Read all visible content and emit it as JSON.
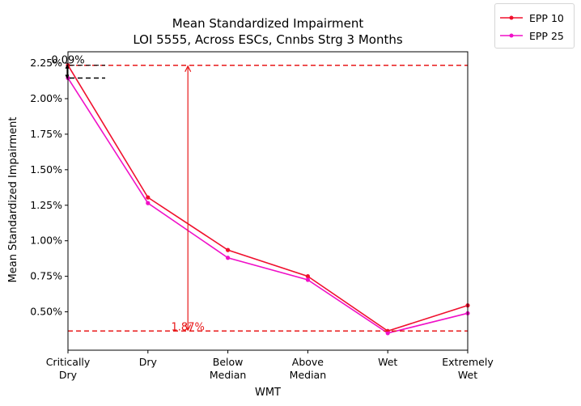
{
  "chart_data": {
    "type": "line",
    "title": "Mean Standardized Impairment",
    "subtitle": "LOI 5555, Across ESCs, Cnnbs Strg 3 Months",
    "xlabel": "WMT",
    "ylabel": "Mean Standardized Impairment",
    "categories": [
      "Critically\nDry",
      "Dry",
      "Below\nMedian",
      "Above\nMedian",
      "Wet",
      "Extremely\nWet"
    ],
    "ylim": [
      0.0023,
      0.0233
    ],
    "yticks": [
      0.005,
      0.0075,
      0.01,
      0.0125,
      0.015,
      0.0175,
      0.02,
      0.0225
    ],
    "ytick_labels": [
      "0.50%",
      "0.75%",
      "1.00%",
      "1.25%",
      "1.50%",
      "1.75%",
      "2.00%",
      "2.25%"
    ],
    "grid": false,
    "legend_position": "outside-top-right",
    "series": [
      {
        "name": "EPP 10",
        "color": "#f0102e",
        "values": [
          0.02235,
          0.01305,
          0.00935,
          0.0075,
          0.00365,
          0.00545
        ]
      },
      {
        "name": "EPP 25",
        "color": "#f010c8",
        "values": [
          0.02145,
          0.01265,
          0.0088,
          0.00725,
          0.0035,
          0.0049
        ]
      }
    ],
    "reference_lines": [
      {
        "value": 0.02235,
        "color": "#e8191a"
      },
      {
        "value": 0.00365,
        "color": "#e8191a"
      }
    ],
    "arrow": {
      "x": 1.5,
      "from": 0.00365,
      "to": 0.02235,
      "color": "#e8191a",
      "label": "1.87%"
    },
    "offset_annotation": {
      "label": "0.09%",
      "from": 0.02235,
      "to": 0.02145
    }
  }
}
